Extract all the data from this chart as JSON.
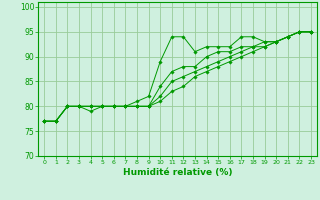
{
  "xlabel": "Humidité relative (%)",
  "xlim": [
    -0.5,
    23.5
  ],
  "ylim": [
    70,
    101
  ],
  "yticks": [
    70,
    75,
    80,
    85,
    90,
    95,
    100
  ],
  "xticks": [
    0,
    1,
    2,
    3,
    4,
    5,
    6,
    7,
    8,
    9,
    10,
    11,
    12,
    13,
    14,
    15,
    16,
    17,
    18,
    19,
    20,
    21,
    22,
    23
  ],
  "bg_color": "#cff0df",
  "grid_color": "#99cc99",
  "line_color": "#009900",
  "series": [
    [
      77,
      77,
      80,
      80,
      79,
      80,
      80,
      80,
      81,
      82,
      89,
      94,
      94,
      91,
      92,
      92,
      92,
      94,
      94,
      93,
      93,
      94,
      95,
      95
    ],
    [
      77,
      77,
      80,
      80,
      80,
      80,
      80,
      80,
      80,
      80,
      84,
      87,
      88,
      88,
      90,
      91,
      91,
      92,
      92,
      93,
      93,
      94,
      95,
      95
    ],
    [
      77,
      77,
      80,
      80,
      80,
      80,
      80,
      80,
      80,
      80,
      82,
      85,
      86,
      87,
      88,
      89,
      90,
      91,
      92,
      92,
      93,
      94,
      95,
      95
    ],
    [
      77,
      77,
      80,
      80,
      80,
      80,
      80,
      80,
      80,
      80,
      81,
      83,
      84,
      86,
      87,
      88,
      89,
      90,
      91,
      92,
      93,
      94,
      95,
      95
    ]
  ]
}
